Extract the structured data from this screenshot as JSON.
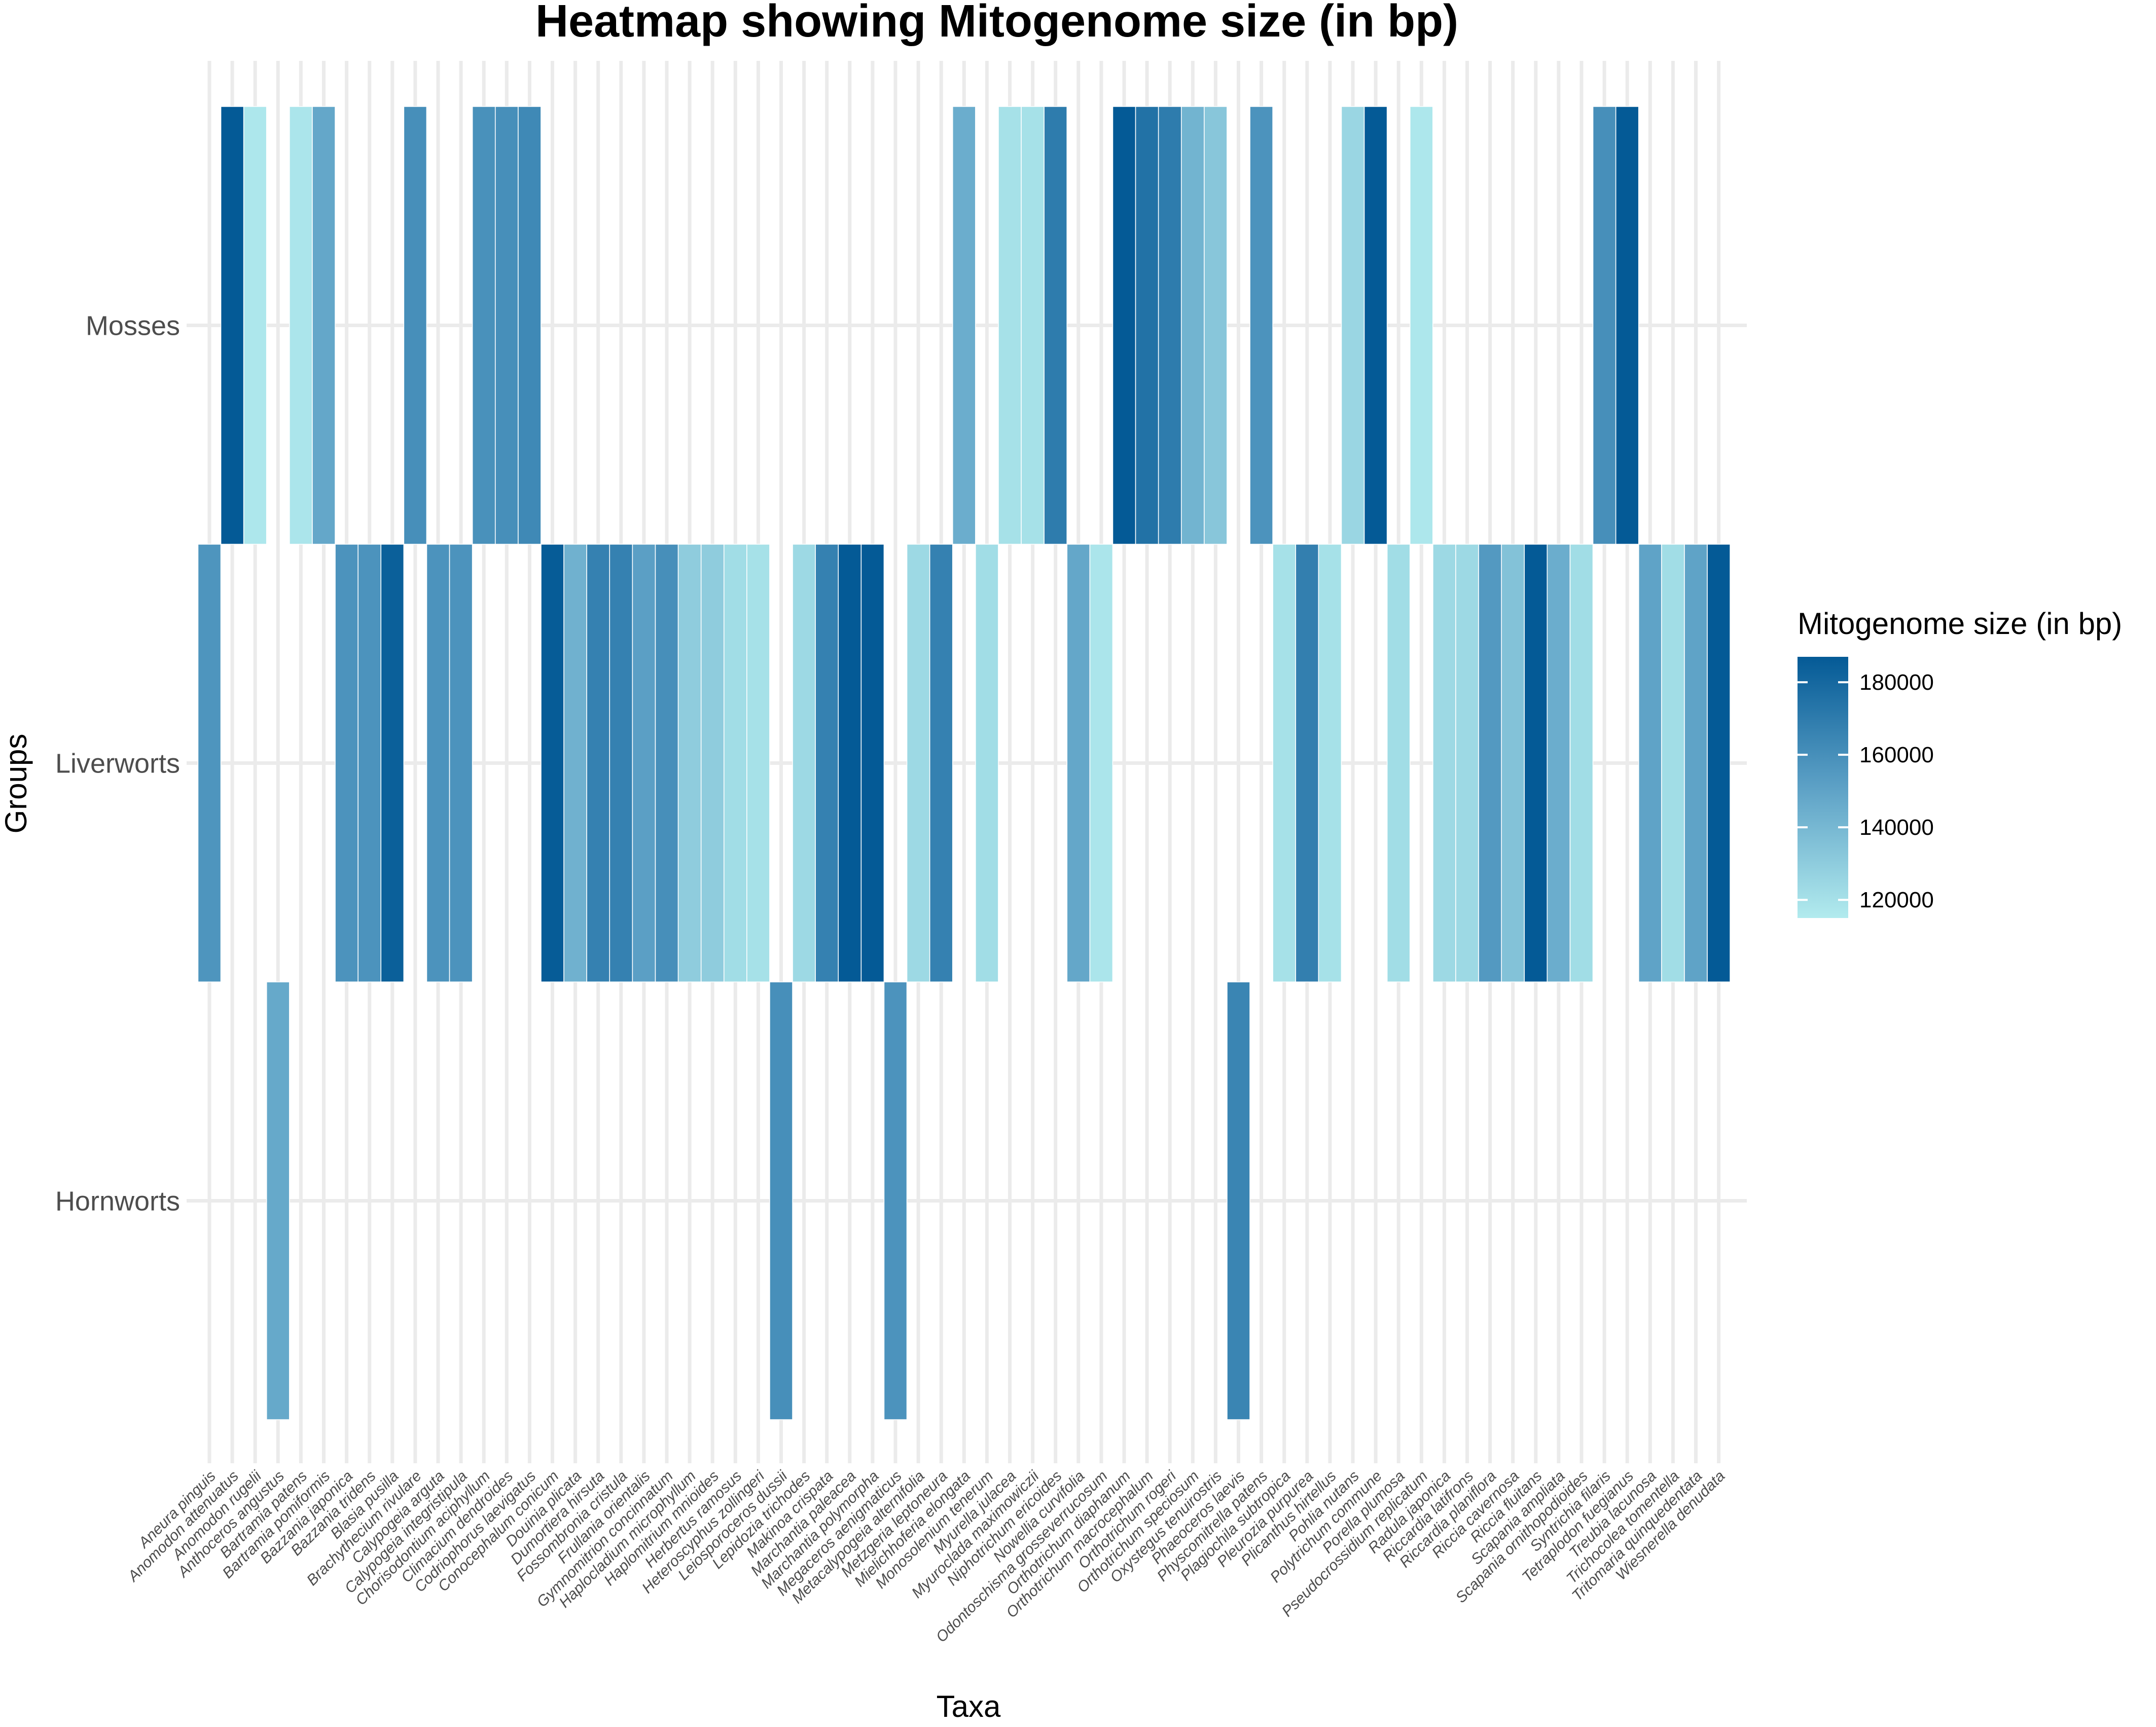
{
  "chart_data": {
    "type": "heatmap",
    "title": "Heatmap showing Mitogenome size (in bp)",
    "xlabel": "Taxa",
    "ylabel": "Groups",
    "legend_title": "Mitogenome size (in bp)",
    "legend_position": "right",
    "legend_ticks": [
      120000,
      140000,
      160000,
      180000
    ],
    "legend_tick_labels": [
      "120000",
      "140000",
      "160000",
      "180000"
    ],
    "value_range": [
      115000,
      187000
    ],
    "color_low": "#b2ebee",
    "color_high": "#045a96",
    "grid": true,
    "groups": [
      "Mosses",
      "Liverworts",
      "Hornworts"
    ],
    "taxa": [
      {
        "name": "Aneura pinguis",
        "group": "Liverworts",
        "value": 157000
      },
      {
        "name": "Anomodon attenuatus",
        "group": "Mosses",
        "value": 187000
      },
      {
        "name": "Anomodon rugelii",
        "group": "Mosses",
        "value": 117000
      },
      {
        "name": "Anthoceros angustus",
        "group": "Hornworts",
        "value": 147000
      },
      {
        "name": "Bartramia patens",
        "group": "Mosses",
        "value": 118000
      },
      {
        "name": "Bartramia pomiformis",
        "group": "Mosses",
        "value": 148000
      },
      {
        "name": "Bazzania japonica",
        "group": "Liverworts",
        "value": 158000
      },
      {
        "name": "Bazzania tridens",
        "group": "Liverworts",
        "value": 158000
      },
      {
        "name": "Blasia pusilla",
        "group": "Liverworts",
        "value": 184000
      },
      {
        "name": "Brachythecium rivulare",
        "group": "Mosses",
        "value": 160000
      },
      {
        "name": "Calypogeia arguta",
        "group": "Liverworts",
        "value": 158000
      },
      {
        "name": "Calypogeia integristipula",
        "group": "Liverworts",
        "value": 158000
      },
      {
        "name": "Chorisodontium aciphyllum",
        "group": "Mosses",
        "value": 159000
      },
      {
        "name": "Climacium dendroides",
        "group": "Mosses",
        "value": 160000
      },
      {
        "name": "Codriophorus laevigatus",
        "group": "Mosses",
        "value": 163000
      },
      {
        "name": "Conocephalum conicum",
        "group": "Liverworts",
        "value": 186000
      },
      {
        "name": "Douinia plicata",
        "group": "Liverworts",
        "value": 143000
      },
      {
        "name": "Dumortiera hirsuta",
        "group": "Liverworts",
        "value": 167000
      },
      {
        "name": "Fossombronia cristula",
        "group": "Liverworts",
        "value": 167000
      },
      {
        "name": "Frullania orientalis",
        "group": "Liverworts",
        "value": 152000
      },
      {
        "name": "Gymnomitrion concinnatum",
        "group": "Liverworts",
        "value": 160000
      },
      {
        "name": "Haplocladium microphyllum",
        "group": "Liverworts",
        "value": 130000
      },
      {
        "name": "Haplomitrium mnioides",
        "group": "Liverworts",
        "value": 130000
      },
      {
        "name": "Herbertus ramosus",
        "group": "Liverworts",
        "value": 122000
      },
      {
        "name": "Heteroscyphus zollingeri",
        "group": "Liverworts",
        "value": 120000
      },
      {
        "name": "Leiosporoceros dussii",
        "group": "Hornworts",
        "value": 160000
      },
      {
        "name": "Lepidozia trichodes",
        "group": "Liverworts",
        "value": 124000
      },
      {
        "name": "Makinoa crispata",
        "group": "Liverworts",
        "value": 167000
      },
      {
        "name": "Marchantia paleacea",
        "group": "Liverworts",
        "value": 187000
      },
      {
        "name": "Marchantia polymorpha",
        "group": "Liverworts",
        "value": 187000
      },
      {
        "name": "Megaceros aenigmaticus",
        "group": "Hornworts",
        "value": 158000
      },
      {
        "name": "Metacalypogeia alternifolia",
        "group": "Liverworts",
        "value": 124000
      },
      {
        "name": "Metzgeria leptoneura",
        "group": "Liverworts",
        "value": 167000
      },
      {
        "name": "Mielichhoferia elongata",
        "group": "Mosses",
        "value": 145000
      },
      {
        "name": "Monosolenium tenerum",
        "group": "Liverworts",
        "value": 122000
      },
      {
        "name": "Myurella julacea",
        "group": "Mosses",
        "value": 120000
      },
      {
        "name": "Myuroclada maximowiczii",
        "group": "Mosses",
        "value": 120000
      },
      {
        "name": "Niphotrichum ericoides",
        "group": "Mosses",
        "value": 170000
      },
      {
        "name": "Nowellia curvifolia",
        "group": "Liverworts",
        "value": 148000
      },
      {
        "name": "Odontoschisma grosseverrucosum",
        "group": "Liverworts",
        "value": 118000
      },
      {
        "name": "Orthotrichum diaphanum",
        "group": "Mosses",
        "value": 187000
      },
      {
        "name": "Orthotrichum macrocephalum",
        "group": "Mosses",
        "value": 175000
      },
      {
        "name": "Orthotrichum rogeri",
        "group": "Mosses",
        "value": 170000
      },
      {
        "name": "Orthotrichum speciosum",
        "group": "Mosses",
        "value": 142000
      },
      {
        "name": "Oxystegus tenuirostris",
        "group": "Mosses",
        "value": 133000
      },
      {
        "name": "Phaeoceros laevis",
        "group": "Hornworts",
        "value": 165000
      },
      {
        "name": "Physcomitrella patens",
        "group": "Mosses",
        "value": 158000
      },
      {
        "name": "Plagiochila subtropica",
        "group": "Liverworts",
        "value": 120000
      },
      {
        "name": "Pleurozia purpurea",
        "group": "Liverworts",
        "value": 168000
      },
      {
        "name": "Plicanthus hirtellus",
        "group": "Liverworts",
        "value": 120000
      },
      {
        "name": "Pohlia nutans",
        "group": "Mosses",
        "value": 125000
      },
      {
        "name": "Polytrichum commune",
        "group": "Mosses",
        "value": 187000
      },
      {
        "name": "Porella plumosa",
        "group": "Liverworts",
        "value": 122000
      },
      {
        "name": "Pseudocrossidium replicatum",
        "group": "Mosses",
        "value": 117000
      },
      {
        "name": "Radula japonica",
        "group": "Liverworts",
        "value": 124000
      },
      {
        "name": "Riccardia latifrons",
        "group": "Liverworts",
        "value": 124000
      },
      {
        "name": "Riccardia planiflora",
        "group": "Liverworts",
        "value": 155000
      },
      {
        "name": "Riccia cavernosa",
        "group": "Liverworts",
        "value": 135000
      },
      {
        "name": "Riccia fluitans",
        "group": "Liverworts",
        "value": 187000
      },
      {
        "name": "Scapania ampliata",
        "group": "Liverworts",
        "value": 145000
      },
      {
        "name": "Scapania ornithopodioides",
        "group": "Liverworts",
        "value": 122000
      },
      {
        "name": "Syntrichia filaris",
        "group": "Mosses",
        "value": 160000
      },
      {
        "name": "Tetraplodon fuegianus",
        "group": "Mosses",
        "value": 187000
      },
      {
        "name": "Treubia lacunosa",
        "group": "Liverworts",
        "value": 150000
      },
      {
        "name": "Trichocolea tomentella",
        "group": "Liverworts",
        "value": 122000
      },
      {
        "name": "Tritomaria quinquedentata",
        "group": "Liverworts",
        "value": 150000
      },
      {
        "name": "Wiesnerella denudata",
        "group": "Liverworts",
        "value": 187000
      }
    ]
  }
}
